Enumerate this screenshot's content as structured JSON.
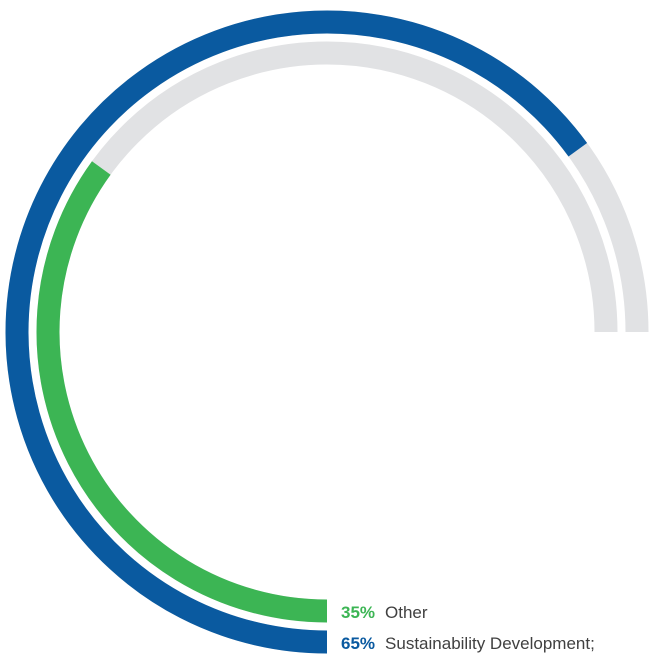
{
  "chart_data": {
    "type": "radial-bar",
    "series": [
      {
        "name": "Other",
        "value": 35,
        "value_label": "35%",
        "color": "#3cb554"
      },
      {
        "name": "Sustainability Development;",
        "value": 65,
        "value_label": "65%",
        "color": "#0a5aa0"
      }
    ],
    "track_color": "#e1e2e4",
    "max_sweep_percent": 75,
    "unit": "%"
  }
}
